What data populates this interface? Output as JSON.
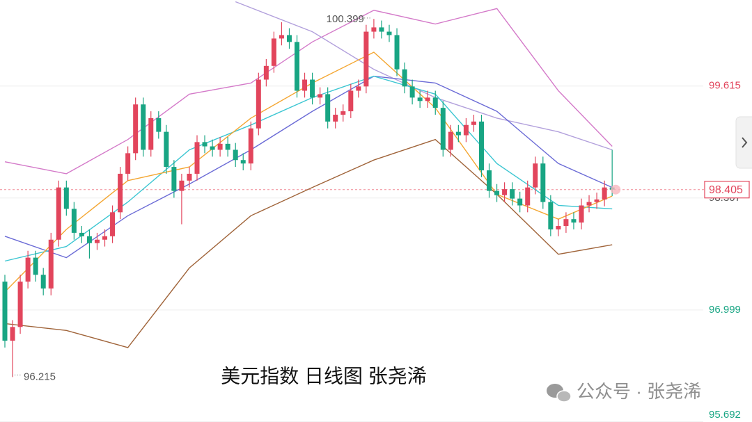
{
  "chart_data": {
    "type": "candlestick",
    "title": "美元指数 日线图 张尧浠",
    "watermark": "公众号 · 张尧浠",
    "ylim": [
      95.69,
      100.62
    ],
    "yticks": [
      95.692,
      96.999,
      98.307,
      99.615
    ],
    "grid": true,
    "last_price": 98.405,
    "up_color": "#e2455c",
    "down_color": "#18a583",
    "open": [
      97.33,
      96.64,
      96.8,
      97.33,
      97.61,
      97.41,
      97.25,
      97.82,
      98.43,
      98.18,
      97.9,
      97.86,
      97.78,
      97.82,
      97.86,
      98.14,
      98.59,
      98.83,
      99.4,
      98.87,
      99.24,
      99.08,
      98.67,
      98.39,
      98.51,
      98.59,
      98.96,
      98.91,
      98.87,
      98.94,
      98.87,
      98.75,
      98.71,
      99.12,
      99.69,
      99.85,
      100.17,
      100.21,
      100.13,
      99.56,
      99.69,
      99.48,
      99.52,
      99.2,
      99.28,
      99.32,
      99.56,
      99.61,
      100.25,
      100.3,
      100.25,
      100.21,
      99.81,
      99.61,
      99.48,
      99.44,
      99.48,
      99.36,
      98.87,
      99.08,
      99.04,
      99.16,
      99.2,
      98.63,
      98.39,
      98.34,
      98.41,
      98.3,
      98.22,
      98.43,
      98.71,
      98.26,
      97.94,
      97.98,
      98.06,
      98.02,
      98.22,
      98.26,
      98.29,
      98.43
    ],
    "close": [
      96.64,
      96.8,
      97.33,
      97.61,
      97.41,
      97.25,
      97.82,
      98.43,
      98.18,
      97.9,
      97.86,
      97.78,
      97.82,
      97.86,
      98.14,
      98.59,
      98.83,
      99.4,
      98.87,
      99.24,
      99.08,
      98.67,
      98.39,
      98.51,
      98.59,
      98.96,
      98.91,
      98.87,
      98.94,
      98.87,
      98.75,
      98.71,
      99.12,
      99.69,
      99.85,
      100.17,
      100.21,
      100.13,
      99.56,
      99.69,
      99.48,
      99.52,
      99.2,
      99.28,
      99.32,
      99.56,
      99.61,
      100.25,
      100.3,
      100.25,
      100.21,
      99.81,
      99.61,
      99.48,
      99.44,
      99.48,
      99.36,
      98.87,
      99.08,
      99.04,
      99.16,
      99.2,
      98.63,
      98.39,
      98.34,
      98.41,
      98.3,
      98.22,
      98.43,
      98.71,
      98.26,
      97.94,
      97.98,
      98.06,
      98.02,
      98.22,
      98.26,
      98.29,
      98.43,
      98.405
    ],
    "high": [
      97.41,
      96.88,
      97.41,
      97.69,
      97.69,
      97.49,
      97.9,
      98.51,
      98.51,
      98.26,
      97.98,
      97.94,
      97.9,
      97.94,
      98.22,
      98.67,
      98.91,
      99.48,
      99.48,
      99.32,
      99.32,
      99.16,
      98.75,
      98.59,
      98.67,
      99.04,
      99.04,
      98.99,
      99.02,
      99.02,
      98.95,
      98.83,
      99.2,
      99.77,
      99.93,
      100.25,
      100.36,
      100.29,
      100.21,
      99.77,
      99.77,
      99.6,
      99.6,
      99.36,
      99.4,
      99.64,
      99.69,
      100.33,
      100.399,
      100.38,
      100.33,
      100.29,
      99.89,
      99.69,
      99.56,
      99.56,
      99.56,
      99.44,
      99.16,
      99.16,
      99.24,
      99.28,
      99.28,
      98.71,
      98.47,
      98.49,
      98.49,
      98.38,
      98.51,
      98.79,
      98.79,
      98.34,
      98.06,
      98.14,
      98.14,
      98.3,
      98.34,
      98.37,
      98.51,
      98.87
    ],
    "low": [
      96.56,
      96.215,
      96.72,
      97.25,
      97.33,
      97.17,
      97.17,
      97.74,
      98.1,
      97.82,
      97.78,
      97.6,
      97.7,
      97.74,
      97.78,
      98.06,
      98.51,
      98.75,
      98.79,
      98.79,
      99.0,
      98.59,
      98.31,
      98.0,
      98.43,
      98.51,
      98.83,
      98.79,
      98.79,
      98.79,
      98.67,
      98.63,
      98.63,
      99.04,
      99.61,
      99.77,
      100.09,
      100.05,
      99.48,
      99.48,
      99.4,
      99.4,
      99.12,
      99.12,
      99.2,
      99.24,
      99.48,
      99.53,
      100.17,
      100.17,
      100.13,
      99.73,
      99.53,
      99.4,
      99.36,
      99.36,
      99.28,
      98.79,
      98.79,
      98.96,
      98.96,
      99.08,
      98.55,
      98.31,
      98.26,
      98.26,
      98.22,
      98.14,
      98.14,
      98.35,
      98.18,
      97.86,
      97.86,
      97.9,
      97.94,
      97.94,
      98.14,
      98.18,
      98.21,
      98.33
    ],
    "series": [
      {
        "color": "#d47ac9",
        "x": [
          1,
          9,
          17,
          25,
          33,
          41,
          49,
          57,
          65,
          73,
          80
        ],
        "values": [
          98.73,
          98.59,
          98.99,
          99.52,
          99.65,
          100.13,
          100.5,
          100.34,
          100.52,
          99.56,
          98.91
        ]
      },
      {
        "color": "#a0643a",
        "x": [
          1,
          9,
          17,
          25,
          33,
          41,
          49,
          57,
          65,
          73,
          80
        ],
        "values": [
          96.84,
          96.76,
          96.56,
          97.49,
          98.1,
          98.43,
          98.75,
          98.99,
          98.35,
          97.65,
          97.76
        ]
      },
      {
        "color": "#b2a0dc",
        "x": [
          31,
          41,
          49,
          57,
          65,
          73,
          80
        ],
        "values": [
          100.6,
          100.25,
          99.81,
          99.48,
          99.24,
          99.08,
          98.87
        ]
      },
      {
        "color": "#6b6bd6",
        "x": [
          1,
          9,
          17,
          25,
          33,
          41,
          49,
          57,
          65,
          73,
          80
        ],
        "values": [
          97.86,
          97.61,
          98.1,
          98.47,
          98.87,
          99.32,
          99.73,
          99.65,
          99.32,
          98.71,
          98.43
        ]
      },
      {
        "color": "#3cc6d2",
        "x": [
          1,
          9,
          17,
          25,
          33,
          41,
          49,
          57,
          65,
          73,
          80
        ],
        "values": [
          97.57,
          97.74,
          98.26,
          98.87,
          99.16,
          99.48,
          99.73,
          99.52,
          98.71,
          98.22,
          98.18
        ]
      },
      {
        "color": "#f4a733",
        "x": [
          1,
          9,
          17,
          25,
          33,
          41,
          49,
          57,
          65,
          73,
          80
        ],
        "values": [
          97.21,
          97.94,
          98.51,
          98.67,
          99.24,
          99.65,
          100.01,
          99.36,
          98.35,
          98.06,
          98.33
        ]
      }
    ]
  }
}
